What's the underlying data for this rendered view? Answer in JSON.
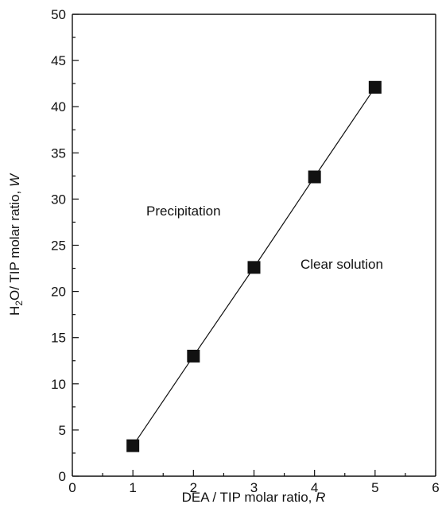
{
  "chart_data": {
    "type": "scatter",
    "x": [
      1,
      2,
      3,
      4,
      5
    ],
    "y": [
      3.3,
      13.0,
      22.6,
      32.4,
      42.1
    ],
    "xlim": [
      0,
      6
    ],
    "ylim": [
      0,
      50
    ],
    "x_ticks": [
      "0",
      "1",
      "2",
      "3",
      "4",
      "5",
      "6"
    ],
    "y_ticks": [
      "0",
      "5",
      "10",
      "15",
      "20",
      "25",
      "30",
      "35",
      "40",
      "45",
      "50"
    ],
    "xlabel": "DEA / TIP molar ratio, R",
    "xlabel_parts": {
      "main": "DEA / TIP molar ratio, ",
      "var": "R"
    },
    "ylabel": "H2O/ TIP molar ratio, W",
    "ylabel_parts": {
      "h": "H",
      "sub": "2",
      "rest": "O/ TIP molar ratio, ",
      "var": "W"
    },
    "annotations": [
      "Precipitation",
      "Clear solution"
    ],
    "series_line": "linear fit through points",
    "marker": "filled-square",
    "grid": false,
    "legend": "none",
    "colors": {
      "marker": "#111111",
      "line": "#111111"
    }
  }
}
